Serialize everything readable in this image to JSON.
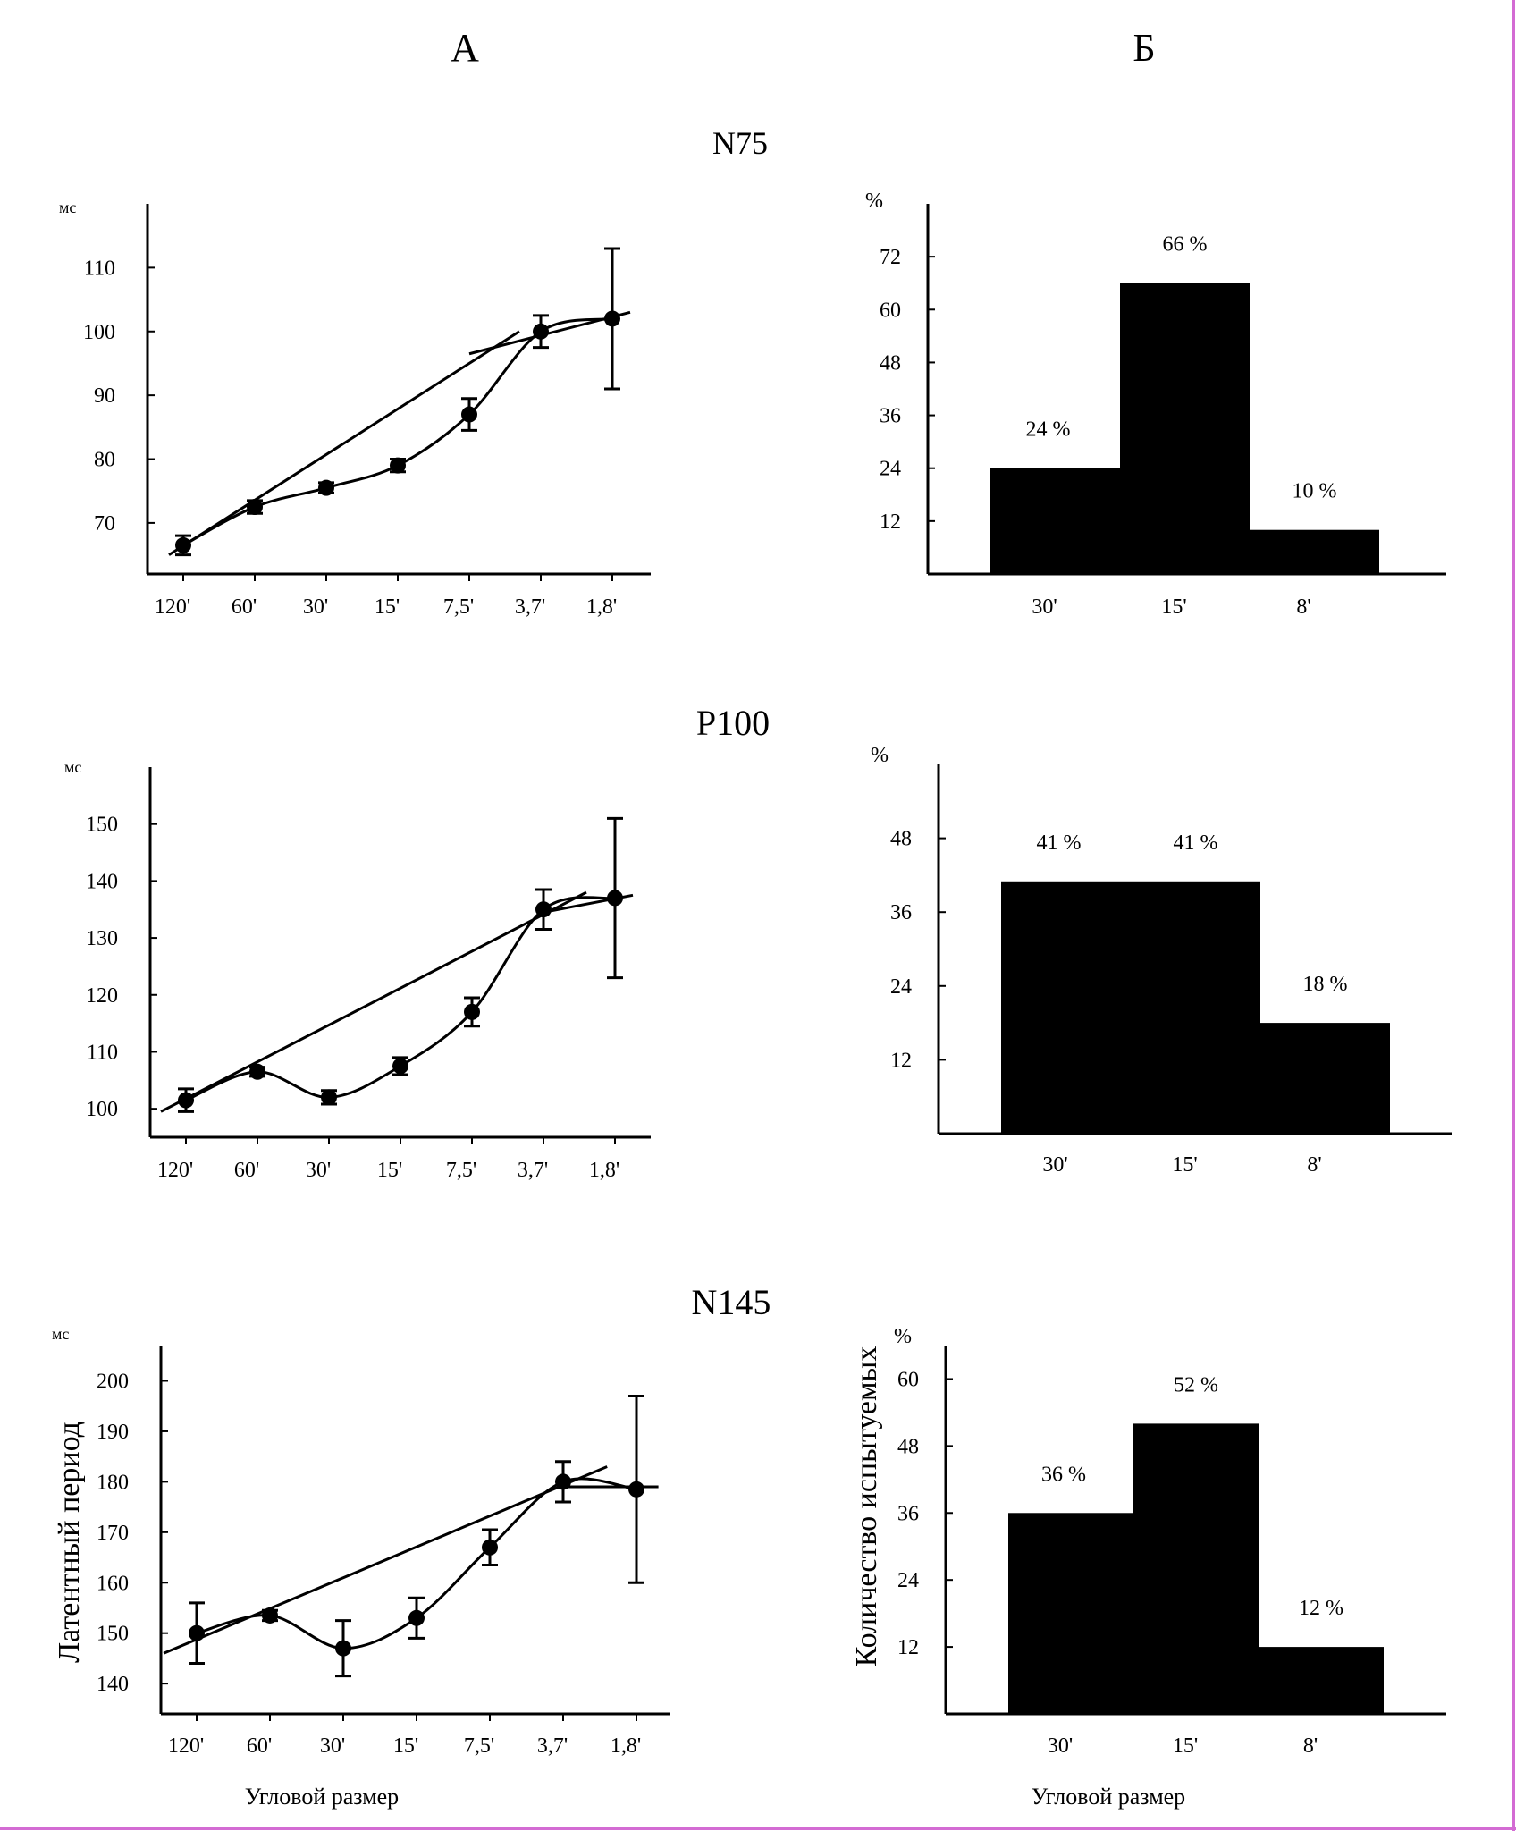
{
  "figure": {
    "column_labels": [
      "А",
      "Б"
    ],
    "frame_color": "#d36bd3"
  },
  "chart_data": [
    {
      "id": "N75",
      "type": "line",
      "title": "N75",
      "ylabel": "мс",
      "xlabel": "",
      "categories": [
        "120'",
        "60'",
        "30'",
        "15'",
        "7,5'",
        "3,7'",
        "1,8'"
      ],
      "yticks": [
        70,
        80,
        90,
        100,
        110
      ],
      "ylim": [
        62,
        120
      ],
      "series": [
        {
          "values": [
            66.5,
            72.5,
            75.5,
            79,
            87,
            100,
            102
          ],
          "errors": [
            1.5,
            1,
            0.8,
            1,
            2.5,
            2.5,
            11
          ]
        }
      ],
      "trend_line": {
        "from": [
          -0.2,
          65
        ],
        "to": [
          4.7,
          100
        ]
      },
      "trend_tail": {
        "from": [
          4.0,
          96.5
        ],
        "to": [
          6.25,
          103
        ]
      },
      "marker_color": "#000000"
    },
    {
      "id": "N75",
      "type": "bar",
      "ylabel": "%",
      "categories": [
        "30'",
        "15'",
        "8'"
      ],
      "values": [
        24,
        66,
        10
      ],
      "value_labels": [
        "24 %",
        "66 %",
        "10 %"
      ],
      "yticks": [
        12,
        24,
        36,
        48,
        60,
        72
      ],
      "ylim": [
        0,
        84
      ],
      "bar_color": "#000000"
    },
    {
      "id": "P100",
      "type": "line",
      "title": "P100",
      "ylabel": "мс",
      "xlabel": "",
      "categories": [
        "120'",
        "60'",
        "30'",
        "15'",
        "7,5'",
        "3,7'",
        "1,8'"
      ],
      "yticks": [
        100,
        110,
        120,
        130,
        140,
        150
      ],
      "ylim": [
        95,
        160
      ],
      "series": [
        {
          "values": [
            101.5,
            106.5,
            102,
            107.5,
            117,
            135,
            137
          ],
          "errors": [
            2,
            0.8,
            1.2,
            1.5,
            2.5,
            3.5,
            14
          ]
        }
      ],
      "trend_line": {
        "from": [
          -0.35,
          99.5
        ],
        "to": [
          5.6,
          138
        ]
      },
      "trend_tail": {
        "from": [
          5.0,
          134.5
        ],
        "to": [
          6.25,
          137.5
        ]
      },
      "marker_color": "#000000"
    },
    {
      "id": "P100",
      "type": "bar",
      "ylabel": "%",
      "categories": [
        "30'",
        "15'",
        "8'"
      ],
      "values": [
        41,
        41,
        18
      ],
      "value_labels": [
        "41 %",
        "41 %",
        "18 %"
      ],
      "yticks": [
        12,
        24,
        36,
        48
      ],
      "ylim": [
        0,
        60
      ],
      "bar_color": "#000000"
    },
    {
      "id": "N145",
      "type": "line",
      "title": "N145",
      "ylabel": "мс",
      "ylabel2": "Латентный период",
      "xlabel": "Угловой размер",
      "categories": [
        "120'",
        "60'",
        "30'",
        "15'",
        "7,5'",
        "3,7'",
        "1,8'"
      ],
      "yticks": [
        140,
        150,
        160,
        170,
        180,
        190,
        200
      ],
      "ylim": [
        134,
        207
      ],
      "series": [
        {
          "values": [
            150,
            153.5,
            147,
            153,
            167,
            180,
            178.5
          ],
          "errors": [
            6,
            1,
            5.5,
            4,
            3.5,
            4,
            18.5
          ]
        }
      ],
      "trend_line": {
        "from": [
          -0.45,
          146
        ],
        "to": [
          5.6,
          183
        ]
      },
      "trend_tail": {
        "from": [
          5.0,
          179
        ],
        "to": [
          6.3,
          179
        ]
      },
      "marker_color": "#000000"
    },
    {
      "id": "N145",
      "type": "bar",
      "ylabel": "%",
      "ylabel2": "Количество испытуемых",
      "xlabel": "Угловой размер",
      "categories": [
        "30'",
        "15'",
        "8'"
      ],
      "values": [
        36,
        52,
        12
      ],
      "value_labels": [
        "36 %",
        "52 %",
        "12 %"
      ],
      "yticks": [
        12,
        24,
        36,
        48,
        60
      ],
      "ylim": [
        0,
        66
      ],
      "bar_color": "#000000"
    }
  ]
}
